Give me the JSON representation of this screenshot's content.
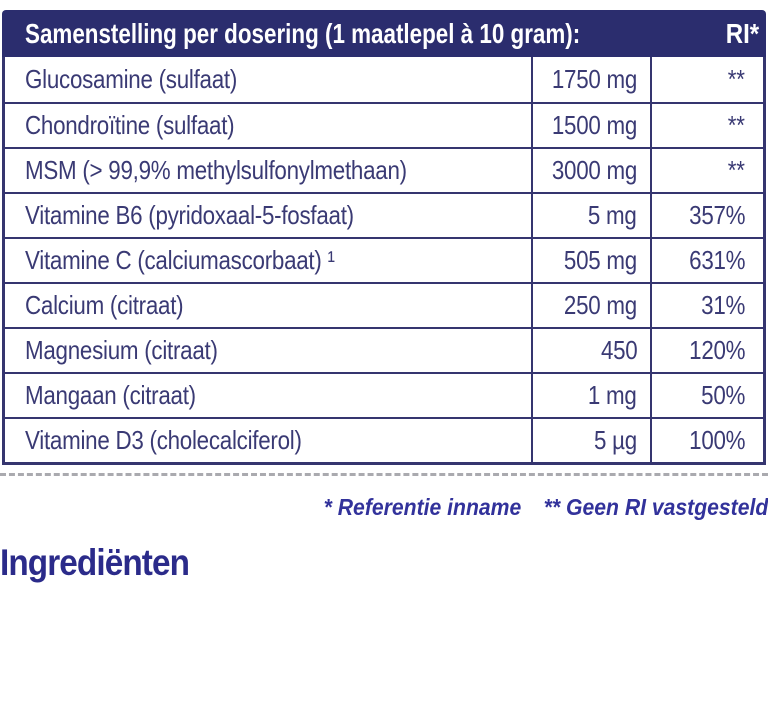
{
  "table": {
    "header": {
      "title": "Samenstelling per dosering (1 maatlepel à 10 gram):",
      "ri_label": "RI*"
    },
    "rows": [
      {
        "name": "Glucosamine (sulfaat)",
        "amount": "1750 mg",
        "ri": "**"
      },
      {
        "name": "Chondroïtine (sulfaat)",
        "amount": "1500 mg",
        "ri": "**"
      },
      {
        "name": "MSM (> 99,9% methylsulfonylmethaan)",
        "amount": "3000 mg",
        "ri": "**"
      },
      {
        "name": "Vitamine B6 (pyridoxaal-5-fosfaat)",
        "amount": "5 mg",
        "ri": "357%"
      },
      {
        "name": "Vitamine C (calciumascorbaat) ¹",
        "amount": "505 mg",
        "ri": "631%"
      },
      {
        "name": "Calcium (citraat)",
        "amount": "250 mg",
        "ri": "31%"
      },
      {
        "name": "Magnesium (citraat)",
        "amount": "450",
        "ri": "120%"
      },
      {
        "name": "Mangaan (citraat)",
        "amount": "1 mg",
        "ri": "50%"
      },
      {
        "name": "Vitamine D3 (cholecalciferol)",
        "amount": "5 µg",
        "ri": "100%"
      }
    ]
  },
  "footnotes": {
    "reference": "* Referentie inname",
    "no_ri": "** Geen RI vastgesteld"
  },
  "section_heading": "Ingrediënten",
  "colors": {
    "header_bg": "#2b2d6e",
    "header_text": "#ffffff",
    "border": "#35356f",
    "cell_text": "#3a3a74",
    "row_bg": "#ffffff",
    "footnote_text": "#32329b",
    "heading_text": "#2b2b8a",
    "dash": "#2e2e3a"
  }
}
